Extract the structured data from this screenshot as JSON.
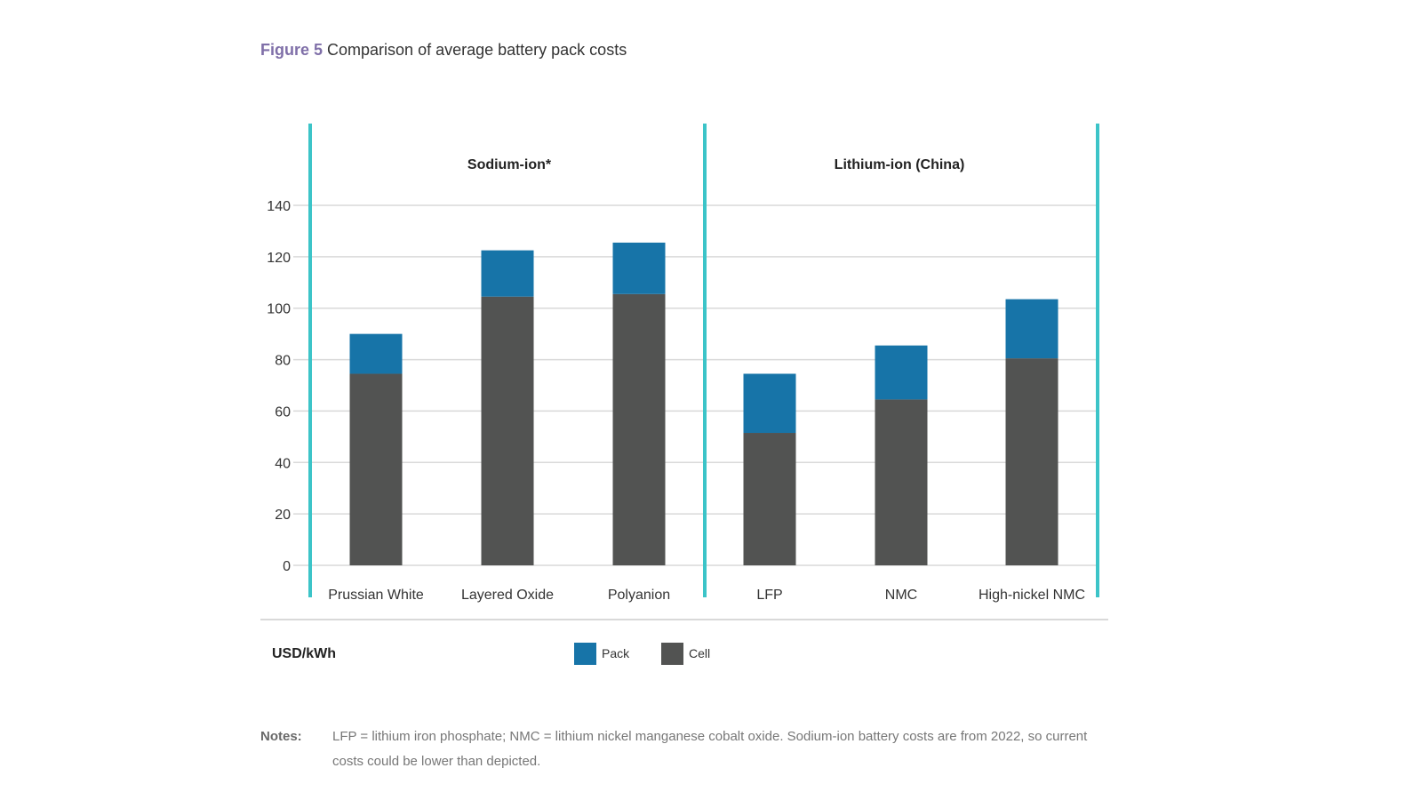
{
  "title": {
    "figure_label": "Figure 5",
    "text": "Comparison of average battery pack costs"
  },
  "chart_data": {
    "type": "bar",
    "stacked": true,
    "title": "Comparison of average battery pack costs",
    "ylabel": "USD/kWh",
    "ylim": [
      0,
      140
    ],
    "yticks": [
      0,
      20,
      40,
      60,
      80,
      100,
      120,
      140
    ],
    "grid": true,
    "legend_position": "bottom",
    "groups": [
      {
        "label": "Sodium-ion*",
        "categories": [
          "Prussian White",
          "Layered Oxide",
          "Polyanion"
        ]
      },
      {
        "label": "Lithium-ion (China)",
        "categories": [
          "LFP",
          "NMC",
          "High-nickel NMC"
        ]
      }
    ],
    "categories": [
      "Prussian White",
      "Layered Oxide",
      "Polyanion",
      "LFP",
      "NMC",
      "High-nickel NMC"
    ],
    "series": [
      {
        "name": "Cell",
        "color": "#525352",
        "values": [
          74.5,
          104.5,
          105.5,
          51.5,
          64.5,
          80.5
        ]
      },
      {
        "name": "Pack",
        "color": "#1774a8",
        "values": [
          15.5,
          18,
          20,
          23,
          21,
          23
        ]
      }
    ],
    "legend": [
      {
        "name": "Pack",
        "color": "#1774a8"
      },
      {
        "name": "Cell",
        "color": "#525352"
      }
    ],
    "divider_color": "#3cc4c8"
  },
  "notes": {
    "label": "Notes:",
    "text": "LFP = lithium iron phosphate; NMC = lithium nickel manganese cobalt oxide. Sodium-ion battery costs are from 2022, so current costs could be lower than depicted."
  }
}
